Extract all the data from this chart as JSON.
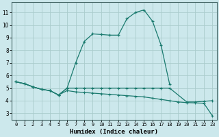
{
  "xlabel": "Humidex (Indice chaleur)",
  "bg_color": "#cce8ec",
  "grid_color": "#aacccc",
  "line_color": "#1a7a6e",
  "xlim": [
    -0.5,
    23.5
  ],
  "ylim": [
    2.5,
    11.8
  ],
  "xticks": [
    0,
    1,
    2,
    3,
    4,
    5,
    6,
    7,
    8,
    9,
    10,
    11,
    12,
    13,
    14,
    15,
    16,
    17,
    18,
    19,
    20,
    21,
    22,
    23
  ],
  "yticks": [
    3,
    4,
    5,
    6,
    7,
    8,
    9,
    10,
    11
  ],
  "series1_x": [
    0,
    1,
    2,
    3,
    4,
    5,
    6,
    7,
    8,
    9,
    10,
    11,
    12,
    13,
    14,
    15,
    16,
    17,
    18
  ],
  "series1_y": [
    5.5,
    5.35,
    5.1,
    4.9,
    4.8,
    4.45,
    5.0,
    7.0,
    8.7,
    9.3,
    9.25,
    9.2,
    9.2,
    10.5,
    11.0,
    11.2,
    10.3,
    8.4,
    5.3
  ],
  "series2_x": [
    0,
    1,
    2,
    3,
    4,
    5,
    6,
    7,
    8,
    9,
    10,
    11,
    12,
    13,
    14,
    15,
    16,
    17,
    18,
    20,
    21,
    22,
    23
  ],
  "series2_y": [
    5.5,
    5.35,
    5.1,
    4.9,
    4.8,
    4.45,
    5.0,
    5.0,
    5.0,
    5.0,
    5.0,
    5.0,
    5.0,
    5.0,
    5.0,
    5.0,
    5.0,
    5.0,
    5.0,
    3.9,
    3.9,
    3.95,
    4.0
  ],
  "series3_x": [
    0,
    1,
    2,
    3,
    4,
    5,
    6,
    7,
    8,
    9,
    10,
    11,
    12,
    13,
    14,
    15,
    16,
    17,
    18,
    19,
    20,
    21,
    22,
    23
  ],
  "series3_y": [
    5.5,
    5.35,
    5.1,
    4.9,
    4.8,
    4.45,
    4.8,
    4.7,
    4.65,
    4.6,
    4.55,
    4.5,
    4.45,
    4.4,
    4.35,
    4.3,
    4.2,
    4.1,
    4.0,
    3.9,
    3.85,
    3.82,
    3.8,
    2.8
  ]
}
